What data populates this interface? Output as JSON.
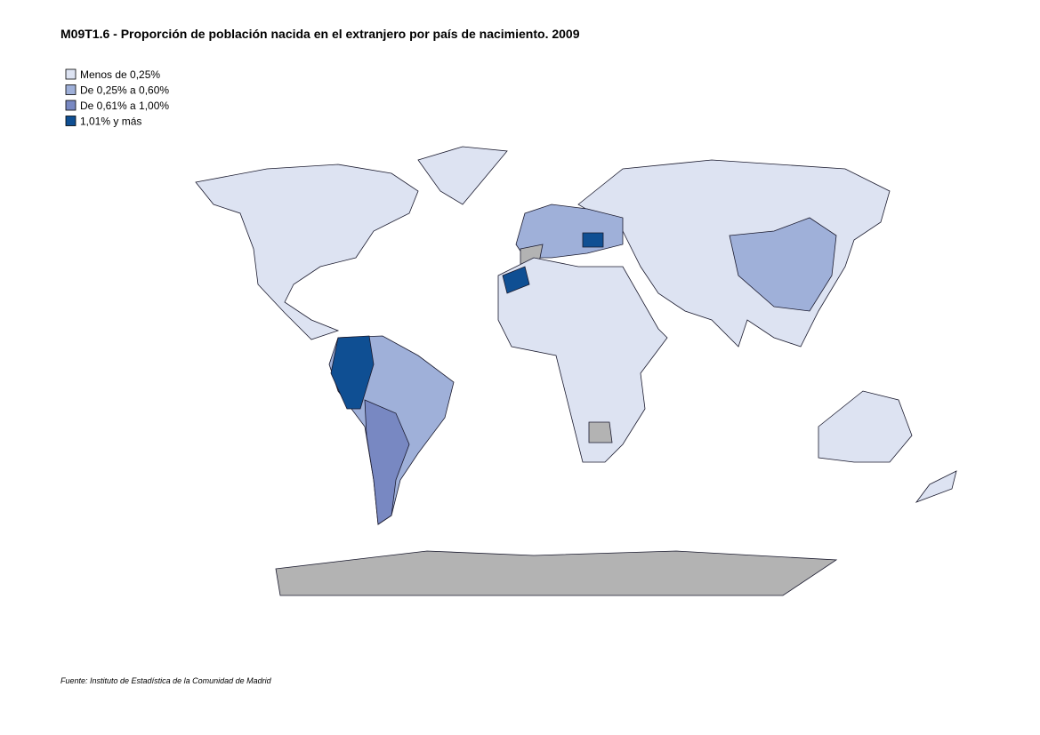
{
  "header": {
    "title": "M09T1.6 - Proporción de población nacida en el extranjero por país de nacimiento. 2009"
  },
  "legend": {
    "items": [
      {
        "label": "Menos de 0,25%",
        "color": "#dde3f2"
      },
      {
        "label": "De 0,25% a 0,60%",
        "color": "#9fb0d9"
      },
      {
        "label": "De 0,61% a 1,00%",
        "color": "#7888c2"
      },
      {
        "label": "1,01%  y más",
        "color": "#0f4f93"
      }
    ],
    "no_data_color": "#b3b3b3"
  },
  "footer": {
    "source": "Fuente: Instituto de Estadística de la Comunidad de Madrid"
  }
}
